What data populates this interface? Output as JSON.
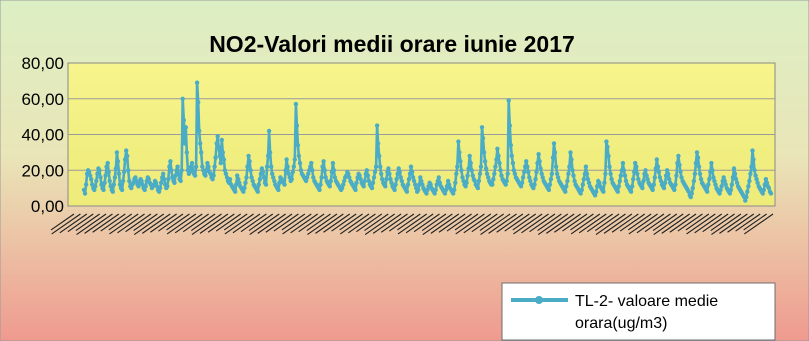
{
  "colors": {
    "background_top": "#dcefc4",
    "background_bottom": "#ef9a8f",
    "plot_fill": "#f3f17f",
    "series": "#4bacc6",
    "grid": "#9a9a9a",
    "text": "#000000"
  },
  "chart_data": {
    "type": "line",
    "title": "NO2-Valori medii orare iunie 2017",
    "xlabel": "",
    "ylabel": "",
    "ylim": [
      0,
      80
    ],
    "yticks": [
      "0,00",
      "20,00",
      "40,00",
      "60,00",
      "80,00"
    ],
    "ytick_values": [
      0,
      20,
      40,
      60,
      80
    ],
    "grid": true,
    "legend": {
      "placement": "bottom-right",
      "label": "TL-2- valoare medie orara(ug/m3)"
    },
    "x_tick_labels_note": "dense rotated hourly labels, illegible",
    "series": [
      {
        "name": "TL-2- valoare medie orara(ug/m3)",
        "values": [
          9,
          7,
          12,
          18,
          20,
          19,
          17,
          15,
          12,
          10,
          9,
          11,
          14,
          18,
          21,
          20,
          16,
          12,
          10,
          9,
          13,
          17,
          22,
          24,
          19,
          14,
          11,
          9,
          8,
          12,
          16,
          21,
          30,
          25,
          18,
          12,
          10,
          9,
          14,
          19,
          26,
          31,
          28,
          20,
          14,
          11,
          10,
          12,
          13,
          15,
          16,
          14,
          12,
          11,
          13,
          15,
          14,
          12,
          10,
          9,
          11,
          14,
          16,
          15,
          13,
          12,
          10,
          11,
          12,
          14,
          13,
          11,
          9,
          8,
          10,
          13,
          16,
          18,
          15,
          12,
          10,
          11,
          15,
          22,
          25,
          20,
          16,
          14,
          13,
          17,
          20,
          22,
          18,
          15,
          14,
          20,
          60,
          48,
          35,
          44,
          30,
          20,
          18,
          19,
          22,
          24,
          20,
          18,
          17,
          22,
          69,
          58,
          42,
          35,
          30,
          22,
          20,
          18,
          17,
          20,
          24,
          22,
          19,
          18,
          16,
          15,
          17,
          22,
          27,
          35,
          39,
          33,
          28,
          24,
          37,
          30,
          26,
          20,
          18,
          16,
          14,
          13,
          15,
          12,
          11,
          10,
          9,
          8,
          12,
          17,
          15,
          13,
          11,
          10,
          9,
          8,
          10,
          13,
          16,
          22,
          28,
          25,
          20,
          16,
          14,
          12,
          11,
          10,
          9,
          8,
          12,
          15,
          18,
          21,
          19,
          16,
          13,
          12,
          22,
          28,
          42,
          30,
          22,
          18,
          16,
          14,
          12,
          11,
          10,
          9,
          13,
          16,
          15,
          14,
          13,
          12,
          20,
          26,
          22,
          18,
          16,
          14,
          15,
          19,
          22,
          26,
          57,
          45,
          34,
          28,
          24,
          20,
          18,
          17,
          16,
          15,
          14,
          16,
          18,
          20,
          22,
          24,
          20,
          16,
          14,
          13,
          12,
          11,
          10,
          9,
          12,
          16,
          22,
          25,
          20,
          16,
          14,
          13,
          12,
          11,
          14,
          19,
          24,
          20,
          16,
          14,
          13,
          12,
          11,
          10,
          9,
          10,
          12,
          14,
          16,
          17,
          19,
          18,
          16,
          14,
          13,
          12,
          11,
          10,
          9,
          13,
          16,
          18,
          17,
          15,
          13,
          12,
          11,
          14,
          18,
          20,
          17,
          14,
          12,
          11,
          10,
          13,
          16,
          19,
          22,
          45,
          35,
          28,
          22,
          18,
          15,
          13,
          12,
          11,
          15,
          19,
          21,
          18,
          15,
          13,
          11,
          10,
          9,
          12,
          15,
          18,
          21,
          19,
          16,
          14,
          12,
          11,
          10,
          9,
          8,
          12,
          15,
          18,
          22,
          19,
          16,
          14,
          12,
          10,
          8,
          9,
          12,
          16,
          14,
          12,
          10,
          9,
          8,
          7,
          9,
          11,
          13,
          12,
          10,
          9,
          8,
          7,
          9,
          12,
          14,
          16,
          13,
          11,
          10,
          9,
          8,
          7,
          9,
          11,
          14,
          12,
          10,
          9,
          8,
          7,
          9,
          13,
          18,
          22,
          36,
          30,
          25,
          20,
          16,
          14,
          12,
          11,
          13,
          17,
          21,
          28,
          24,
          20,
          17,
          15,
          14,
          12,
          11,
          10,
          14,
          18,
          22,
          44,
          38,
          30,
          25,
          21,
          18,
          16,
          14,
          13,
          12,
          12,
          15,
          18,
          22,
          26,
          32,
          28,
          24,
          20,
          17,
          15,
          14,
          13,
          12,
          14,
          18,
          59,
          45,
          34,
          28,
          24,
          20,
          18,
          16,
          15,
          14,
          13,
          12,
          11,
          13,
          16,
          19,
          22,
          25,
          22,
          19,
          16,
          14,
          12,
          11,
          10,
          12,
          15,
          19,
          24,
          29,
          25,
          21,
          18,
          16,
          14,
          13,
          12,
          11,
          10,
          9,
          12,
          15,
          18,
          27,
          35,
          30,
          22,
          18,
          16,
          14,
          13,
          12,
          11,
          10,
          9,
          8,
          11,
          14,
          18,
          22,
          30,
          26,
          20,
          17,
          14,
          12,
          11,
          10,
          9,
          8,
          7,
          9,
          12,
          15,
          18,
          22,
          18,
          15,
          13,
          11,
          10,
          9,
          8,
          7,
          6,
          8,
          11,
          14,
          13,
          11,
          10,
          9,
          8,
          13,
          18,
          36,
          33,
          28,
          22,
          18,
          15,
          13,
          12,
          11,
          10,
          9,
          8,
          11,
          14,
          17,
          20,
          24,
          20,
          17,
          14,
          12,
          11,
          10,
          9,
          8,
          11,
          15,
          19,
          24,
          22,
          18,
          15,
          13,
          12,
          11,
          10,
          14,
          18,
          20,
          17,
          15,
          13,
          12,
          11,
          10,
          9,
          12,
          16,
          21,
          26,
          22,
          19,
          16,
          14,
          12,
          11,
          10,
          13,
          17,
          20,
          18,
          15,
          13,
          12,
          11,
          10,
          9,
          12,
          17,
          24,
          28,
          23,
          19,
          16,
          14,
          13,
          12,
          11,
          10,
          9,
          8,
          6,
          5,
          7,
          10,
          14,
          18,
          24,
          30,
          27,
          22,
          18,
          15,
          13,
          12,
          11,
          10,
          9,
          8,
          12,
          15,
          19,
          24,
          20,
          16,
          14,
          12,
          10,
          9,
          8,
          7,
          9,
          11,
          14,
          16,
          14,
          12,
          10,
          9,
          8,
          7,
          9,
          12,
          16,
          21,
          18,
          15,
          13,
          11,
          10,
          9,
          8,
          7,
          6,
          5,
          3,
          5,
          8,
          11,
          14,
          18,
          22,
          31,
          26,
          20,
          17,
          15,
          13,
          11,
          10,
          9,
          8,
          7,
          9,
          12,
          15,
          13,
          11,
          10,
          8,
          7
        ]
      }
    ]
  }
}
